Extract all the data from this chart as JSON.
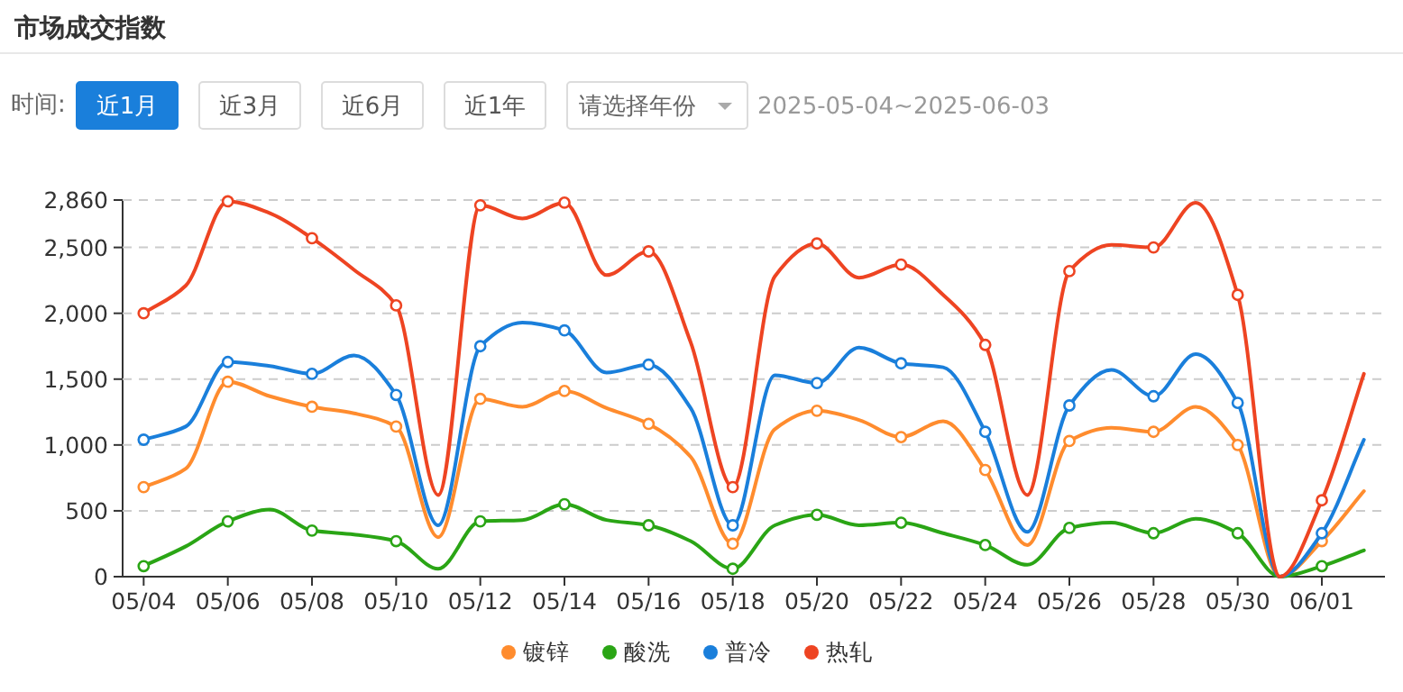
{
  "chart_data": {
    "type": "line",
    "title": "市场成交指数",
    "subtitle": "2025-05-04~2025-06-03",
    "annotations": [
      "时间:",
      "近1月",
      "近3月",
      "近6月",
      "近1年",
      "请选择年份"
    ],
    "categories": [
      "05/04",
      null,
      "05/06",
      null,
      "05/08",
      null,
      "05/10",
      null,
      "05/12",
      null,
      "05/14",
      null,
      "05/16",
      null,
      "05/18",
      null,
      "05/20",
      null,
      "05/22",
      null,
      "05/24",
      null,
      "05/26",
      null,
      "05/28",
      null,
      "05/30",
      null,
      "06/01",
      null
    ],
    "series": [
      {
        "name": "镀锌",
        "color": "#ff8c2e",
        "values": [
          680,
          820,
          1480,
          1370,
          1290,
          1240,
          1140,
          300,
          1350,
          1290,
          1410,
          1280,
          1160,
          910,
          250,
          1120,
          1260,
          1190,
          1060,
          1180,
          810,
          240,
          1030,
          1130,
          1100,
          1290,
          1000,
          0,
          270,
          650
        ]
      },
      {
        "name": "酸洗",
        "color": "#2aa515",
        "values": [
          80,
          230,
          420,
          510,
          350,
          320,
          270,
          60,
          420,
          430,
          550,
          430,
          390,
          270,
          60,
          390,
          470,
          390,
          410,
          330,
          240,
          90,
          370,
          410,
          330,
          440,
          330,
          0,
          80,
          200
        ]
      },
      {
        "name": "普冷",
        "color": "#1a7fdb",
        "values": [
          1040,
          1140,
          1630,
          1600,
          1540,
          1680,
          1380,
          390,
          1750,
          1930,
          1870,
          1550,
          1610,
          1280,
          390,
          1530,
          1470,
          1740,
          1620,
          1590,
          1100,
          340,
          1300,
          1570,
          1370,
          1690,
          1320,
          0,
          330,
          1040
        ]
      },
      {
        "name": "热轧",
        "color": "#ee4422",
        "values": [
          2000,
          2210,
          2850,
          2760,
          2570,
          2330,
          2060,
          620,
          2820,
          2720,
          2840,
          2290,
          2470,
          1780,
          680,
          2280,
          2530,
          2270,
          2370,
          2140,
          1760,
          620,
          2320,
          2520,
          2500,
          2840,
          2140,
          0,
          580,
          1540
        ]
      }
    ],
    "ylim": [
      0,
      2860
    ],
    "yticks": [
      0,
      500,
      {
        "value": 1000,
        "label": "1,000"
      },
      {
        "value": 1500,
        "label": "1,500"
      },
      {
        "value": 2000,
        "label": "2,000"
      },
      {
        "value": 2500,
        "label": "2,500"
      },
      {
        "value": 2860,
        "label": "2,860"
      }
    ],
    "grid": "y",
    "legend": "bottom",
    "marker": "circle",
    "line_style": "solid"
  }
}
